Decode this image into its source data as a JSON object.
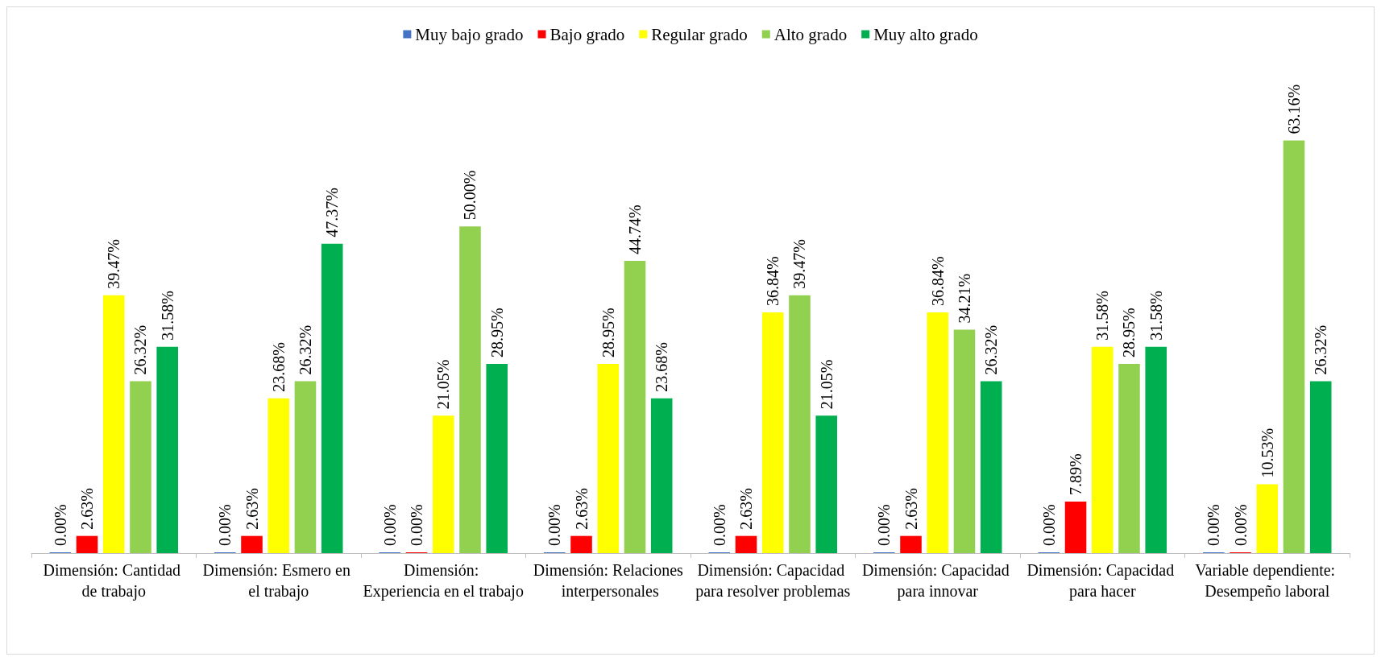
{
  "chart_data": {
    "type": "bar",
    "categories": [
      "Dimensión: Cantidad de trabajo",
      "Dimensión: Esmero en el trabajo",
      "Dimensión: Experiencia en el trabajo",
      "Dimensión: Relaciones interpersonales",
      "Dimensión: Capacidad para resolver problemas",
      "Dimensión: Capacidad para innovar",
      "Dimensión: Capacidad para hacer",
      "Variable dependiente: Desempeño laboral"
    ],
    "series": [
      {
        "name": "Muy bajo grado",
        "color": "#4472c4",
        "values": [
          0,
          0,
          0,
          0,
          0,
          0,
          0,
          0
        ],
        "value_labels": [
          "0.00%",
          "0.00%",
          "0.00%",
          "0.00%",
          "0.00%",
          "0.00%",
          "0.00%",
          "0.00%"
        ]
      },
      {
        "name": "Bajo grado",
        "color": "#ff0000",
        "values": [
          2.63,
          2.63,
          0,
          2.63,
          2.63,
          2.63,
          7.89,
          0
        ],
        "value_labels": [
          "2.63%",
          "2.63%",
          "0.00%",
          "2.63%",
          "2.63%",
          "2.63%",
          "7.89%",
          "0.00%"
        ]
      },
      {
        "name": "Regular grado",
        "color": "#ffff00",
        "values": [
          39.47,
          23.68,
          21.05,
          28.95,
          36.84,
          36.84,
          31.58,
          10.53
        ],
        "value_labels": [
          "39.47%",
          "23.68%",
          "21.05%",
          "28.95%",
          "36.84%",
          "36.84%",
          "31.58%",
          "10.53%"
        ]
      },
      {
        "name": "Alto grado",
        "color": "#92d050",
        "values": [
          26.32,
          26.32,
          50.0,
          44.74,
          39.47,
          34.21,
          28.95,
          63.16
        ],
        "value_labels": [
          "26.32%",
          "26.32%",
          "50.00%",
          "44.74%",
          "39.47%",
          "34.21%",
          "28.95%",
          "63.16%"
        ]
      },
      {
        "name": "Muy alto grado",
        "color": "#00b050",
        "values": [
          31.58,
          47.37,
          28.95,
          23.68,
          21.05,
          26.32,
          31.58,
          26.32
        ],
        "value_labels": [
          "31.58%",
          "47.37%",
          "28.95%",
          "23.68%",
          "21.05%",
          "26.32%",
          "31.58%",
          "26.32%"
        ]
      }
    ],
    "legend": "top"
  }
}
